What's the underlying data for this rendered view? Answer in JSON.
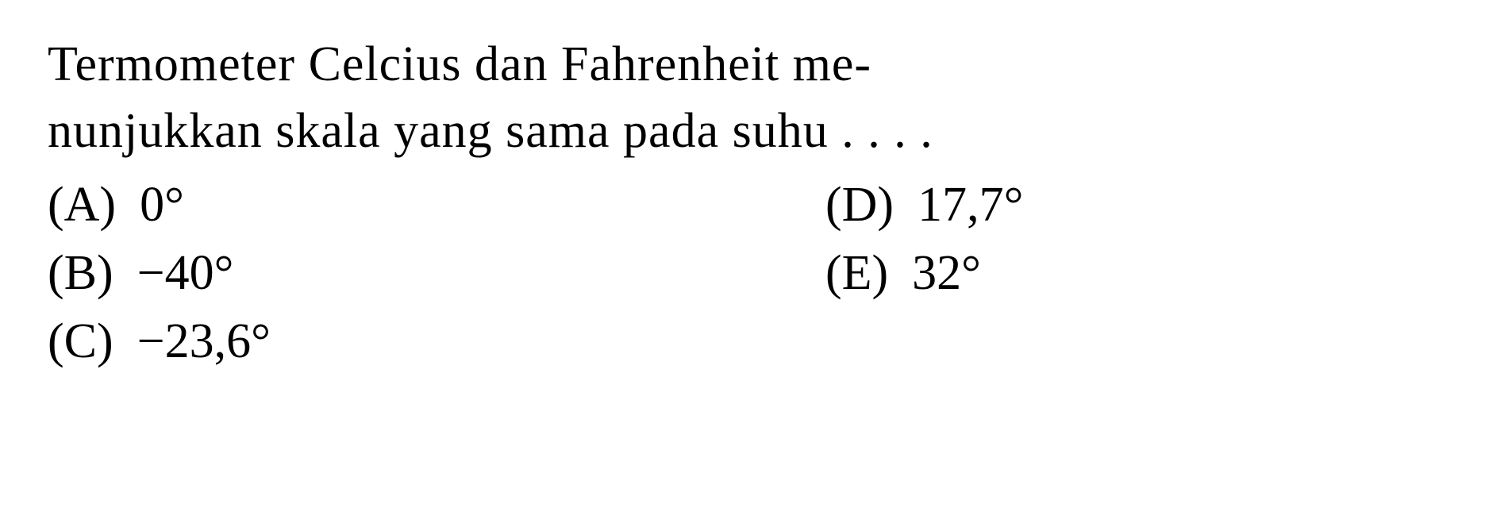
{
  "question": {
    "line1": "Termometer Celcius dan Fahrenheit me-",
    "line2": "nunjukkan skala yang sama pada suhu . . . ."
  },
  "options": {
    "a": {
      "label": "(A)",
      "value": "0°"
    },
    "b": {
      "label": "(B)",
      "value": "−40°"
    },
    "c": {
      "label": "(C)",
      "value": "−23,6°"
    },
    "d": {
      "label": "(D)",
      "value": "17,7°"
    },
    "e": {
      "label": "(E)",
      "value": "32°"
    }
  },
  "styling": {
    "font_family": "Times New Roman",
    "font_size_pt": 46,
    "text_color": "#000000",
    "background_color": "#ffffff"
  }
}
